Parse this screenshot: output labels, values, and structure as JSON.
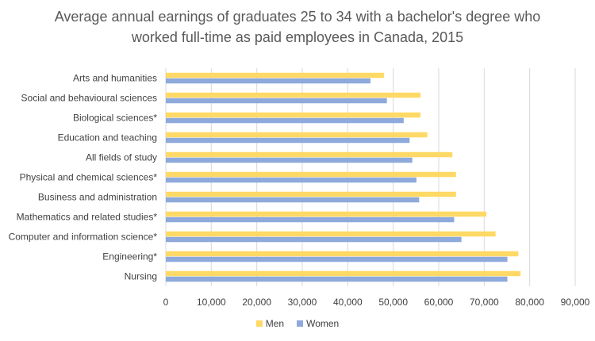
{
  "chart_data": {
    "type": "bar",
    "orientation": "horizontal",
    "title_lines": [
      "Average annual earnings of graduates 25 to 34 with a bachelor's degree who",
      "worked full-time as paid employees in Canada, 2015"
    ],
    "categories": [
      "Arts and humanities",
      "Social and behavioural sciences",
      "Biological sciences*",
      "Education and teaching",
      "All fields of study",
      "Physical and chemical sciences*",
      "Business and administration",
      "Mathematics and related studies*",
      "Computer and information science*",
      "Engineering*",
      "Nursing"
    ],
    "series": [
      {
        "name": "Men",
        "color": "#FFD966",
        "values": [
          48000,
          56000,
          56000,
          57500,
          63000,
          63800,
          63800,
          70500,
          72500,
          77500,
          78000
        ]
      },
      {
        "name": "Women",
        "color": "#8EA9DB",
        "values": [
          45000,
          48600,
          52300,
          53600,
          54200,
          55100,
          55700,
          63400,
          65000,
          75100,
          75100
        ]
      }
    ],
    "x_ticks": [
      "0",
      "10,000",
      "20,000",
      "30,000",
      "40,000",
      "50,000",
      "60,000",
      "70,000",
      "80,000",
      "90,000"
    ],
    "xlim": [
      0,
      90000
    ],
    "xlabel": "",
    "ylabel": "",
    "grid": true,
    "legend_position": "bottom",
    "gridline_color": "#D9D9D9"
  }
}
